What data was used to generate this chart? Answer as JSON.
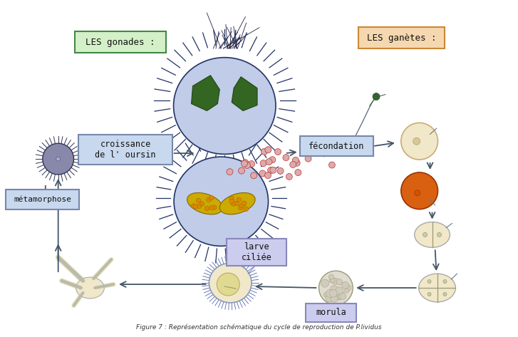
{
  "bg_color": "#ffffff",
  "label_gonades": "LES gonades :",
  "label_gametes": "LES ganètes :",
  "label_fecondation": "fécondation",
  "label_croissance": "croissance\nde l' oursin",
  "label_metamorphose": "métamorphose",
  "label_larve": "larve\nciliée",
  "label_morula": "morula",
  "box_gonades_color": "#d4f0c8",
  "box_gonades_edge": "#448844",
  "box_gametes_color": "#f5d8b0",
  "box_gametes_edge": "#cc8833",
  "box_blue_color": "#c8d8ee",
  "box_blue_edge": "#7788aa",
  "box_purple_color": "#ccccee",
  "box_purple_edge": "#8888bb",
  "body_fill": "#c0cce8",
  "spine_color": "#223366",
  "gonad_green": "#336622",
  "gonad_yellow": "#ccaa00",
  "egg_cream": "#f0e8c8",
  "egg_orange": "#d86010",
  "arrow_color": "#445566",
  "dots_color": "#bb3333",
  "sperm_color": "#334444"
}
